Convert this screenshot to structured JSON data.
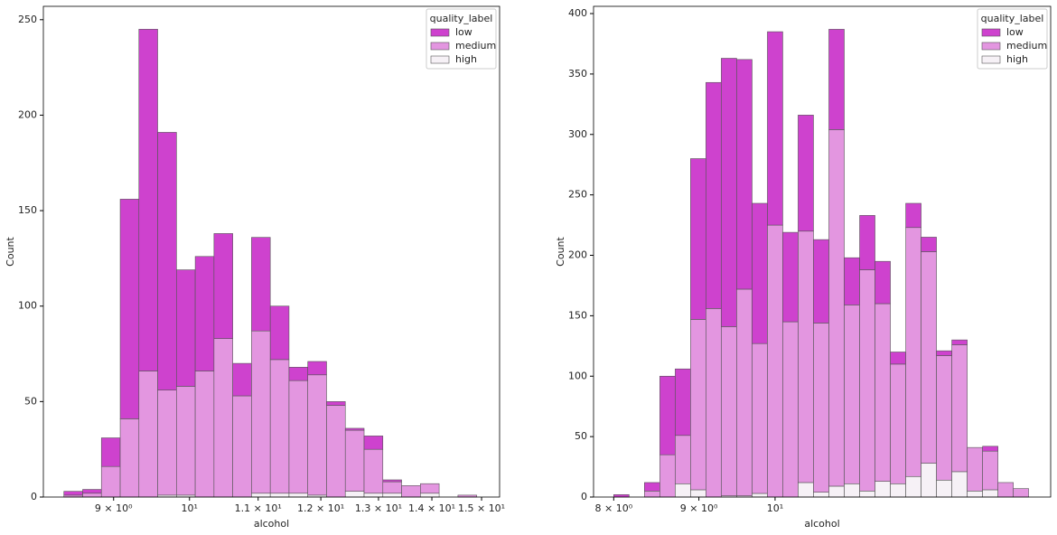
{
  "chart_data": [
    {
      "type": "histogram",
      "xlabel": "alcohol",
      "ylabel": "Count",
      "legend_title": "quality_label",
      "legend": "upper right",
      "xscale": "log",
      "xlim": [
        8.164,
        15.38
      ],
      "ylim": [
        0,
        257
      ],
      "xticks": [
        {
          "value": 9,
          "label": "9 × 10⁰"
        },
        {
          "value": 10,
          "label": "10¹"
        },
        {
          "value": 11,
          "label": "1.1 × 10¹"
        },
        {
          "value": 12,
          "label": "1.2 × 10¹"
        },
        {
          "value": 13,
          "label": "1.3 × 10¹"
        },
        {
          "value": 14,
          "label": "1.4 × 10¹"
        },
        {
          "value": 15,
          "label": "1.5 × 10¹"
        }
      ],
      "yticks": [
        0,
        50,
        100,
        150,
        200,
        250
      ],
      "bins": [
        8.4,
        8.622,
        8.849,
        9.083,
        9.322,
        9.568,
        9.821,
        10.08,
        10.346,
        10.619,
        10.899,
        11.187,
        11.482,
        11.785,
        12.096,
        12.415,
        12.743,
        13.079,
        13.424,
        13.779,
        14.142,
        14.516,
        14.9
      ],
      "series": [
        {
          "name": "low",
          "color": "#ce42ce",
          "values": [
            2,
            2,
            15,
            115,
            179,
            135,
            61,
            60,
            55,
            17,
            49,
            28,
            7,
            7,
            2,
            1,
            7,
            1,
            0,
            0,
            0,
            0
          ]
        },
        {
          "name": "medium",
          "color": "#e396e0",
          "values": [
            1,
            2,
            16,
            41,
            66,
            55,
            57,
            66,
            83,
            53,
            85,
            70,
            59,
            63,
            48,
            32,
            23,
            6,
            6,
            5,
            0,
            1
          ]
        },
        {
          "name": "high",
          "color": "#f6f1f6",
          "values": [
            0,
            0,
            0,
            0,
            0,
            1,
            1,
            0,
            0,
            0,
            2,
            2,
            2,
            1,
            0,
            3,
            2,
            2,
            0,
            2,
            0,
            0
          ]
        }
      ]
    },
    {
      "type": "histogram",
      "xlabel": "alcohol",
      "ylabel": "Count",
      "legend_title": "quality_label",
      "legend": "upper right",
      "xscale": "log",
      "xlim": [
        7.78,
        14.64
      ],
      "ylim": [
        0,
        406
      ],
      "xticks": [
        {
          "value": 8,
          "label": "8 × 10⁰"
        },
        {
          "value": 9,
          "label": "9 × 10⁰"
        },
        {
          "value": 10,
          "label": "10¹"
        }
      ],
      "yticks": [
        0,
        50,
        100,
        150,
        200,
        250,
        300,
        350,
        400
      ],
      "bins": [
        8.0,
        8.172,
        8.347,
        8.527,
        8.71,
        8.897,
        9.088,
        9.283,
        9.483,
        9.687,
        9.895,
        10.107,
        10.324,
        10.546,
        10.773,
        11.004,
        11.241,
        11.482,
        11.729,
        11.981,
        12.238,
        12.501,
        12.77,
        13.044,
        13.324,
        13.611,
        13.903,
        14.2
      ],
      "series": [
        {
          "name": "low",
          "color": "#ce42ce",
          "values": [
            2,
            0,
            7,
            65,
            55,
            133,
            187,
            222,
            190,
            116,
            160,
            74,
            96,
            69,
            83,
            39,
            45,
            35,
            10,
            20,
            12,
            4,
            4,
            0,
            4,
            0,
            0
          ]
        },
        {
          "name": "medium",
          "color": "#e396e0",
          "values": [
            0,
            0,
            5,
            35,
            40,
            141,
            156,
            140,
            171,
            124,
            225,
            145,
            208,
            140,
            295,
            148,
            183,
            147,
            99,
            206,
            175,
            103,
            105,
            36,
            32,
            12,
            7
          ]
        },
        {
          "name": "high",
          "color": "#f6f1f6",
          "values": [
            0,
            0,
            0,
            0,
            11,
            6,
            0,
            1,
            1,
            3,
            0,
            0,
            12,
            4,
            9,
            11,
            5,
            13,
            11,
            17,
            28,
            14,
            21,
            5,
            6,
            0,
            0
          ]
        }
      ]
    }
  ]
}
